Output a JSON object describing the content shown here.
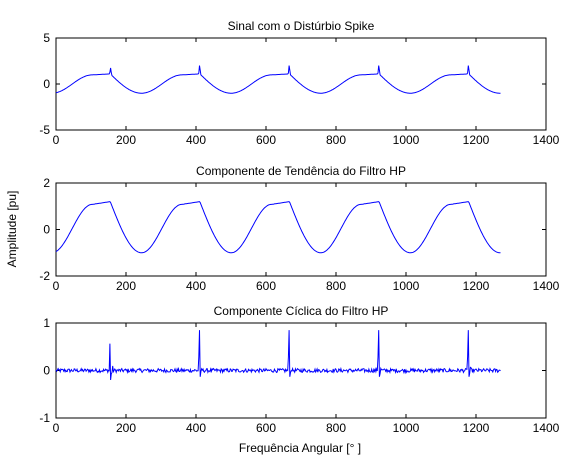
{
  "chart_data": [
    {
      "type": "line",
      "title": "Sinal com o Distúrbio Spike",
      "xlim": [
        0,
        1400
      ],
      "ylim": [
        -5,
        5
      ],
      "xticks": [
        "0",
        "200",
        "400",
        "600",
        "800",
        "1000",
        "1200",
        "1400"
      ],
      "yticks": [
        "5",
        "0",
        "-5"
      ],
      "grid": false,
      "series": [
        {
          "color": "#0000ff",
          "signal": "periodic_trapezoid_plus_spike",
          "x_range": [
            0,
            1270
          ],
          "period": 256,
          "amplitude_min": -1.0,
          "amplitude_max": 1.1,
          "spike_x": [
            155,
            410,
            666,
            922,
            1178
          ],
          "spike_peak": 2.0
        }
      ]
    },
    {
      "type": "line",
      "title": "Componente de Tendência do Filtro HP",
      "xlim": [
        0,
        1400
      ],
      "ylim": [
        -2,
        2
      ],
      "xticks": [
        "0",
        "200",
        "400",
        "600",
        "800",
        "1000",
        "1200",
        "1400"
      ],
      "yticks": [
        "2",
        "0",
        "-2"
      ],
      "grid": false,
      "series": [
        {
          "color": "#0000ff",
          "signal": "periodic_trapezoid_smooth",
          "x_range": [
            0,
            1270
          ],
          "period": 256,
          "amplitude_min": -1.0,
          "amplitude_max": 1.2,
          "peak_x": [
            155,
            410,
            666,
            922,
            1178
          ]
        }
      ]
    },
    {
      "type": "line",
      "title": "Componente Cíclica do Filtro HP",
      "xlim": [
        0,
        1400
      ],
      "ylim": [
        -1,
        1
      ],
      "xticks": [
        "0",
        "200",
        "400",
        "600",
        "800",
        "1000",
        "1200",
        "1400"
      ],
      "yticks": [
        "1",
        "0",
        "-1"
      ],
      "grid": false,
      "series": [
        {
          "color": "#0000ff",
          "signal": "noise_plus_spike_bipolar",
          "x_range": [
            0,
            1270
          ],
          "noise_amplitude": 0.04,
          "spike_x": [
            155,
            410,
            666,
            922,
            1178
          ],
          "spike_peak": 0.85,
          "spike_trough": -0.2
        }
      ]
    }
  ],
  "labels": {
    "ylabel": "Amplitude [pu]",
    "xlabel": "Frequência Angular [° ]"
  }
}
